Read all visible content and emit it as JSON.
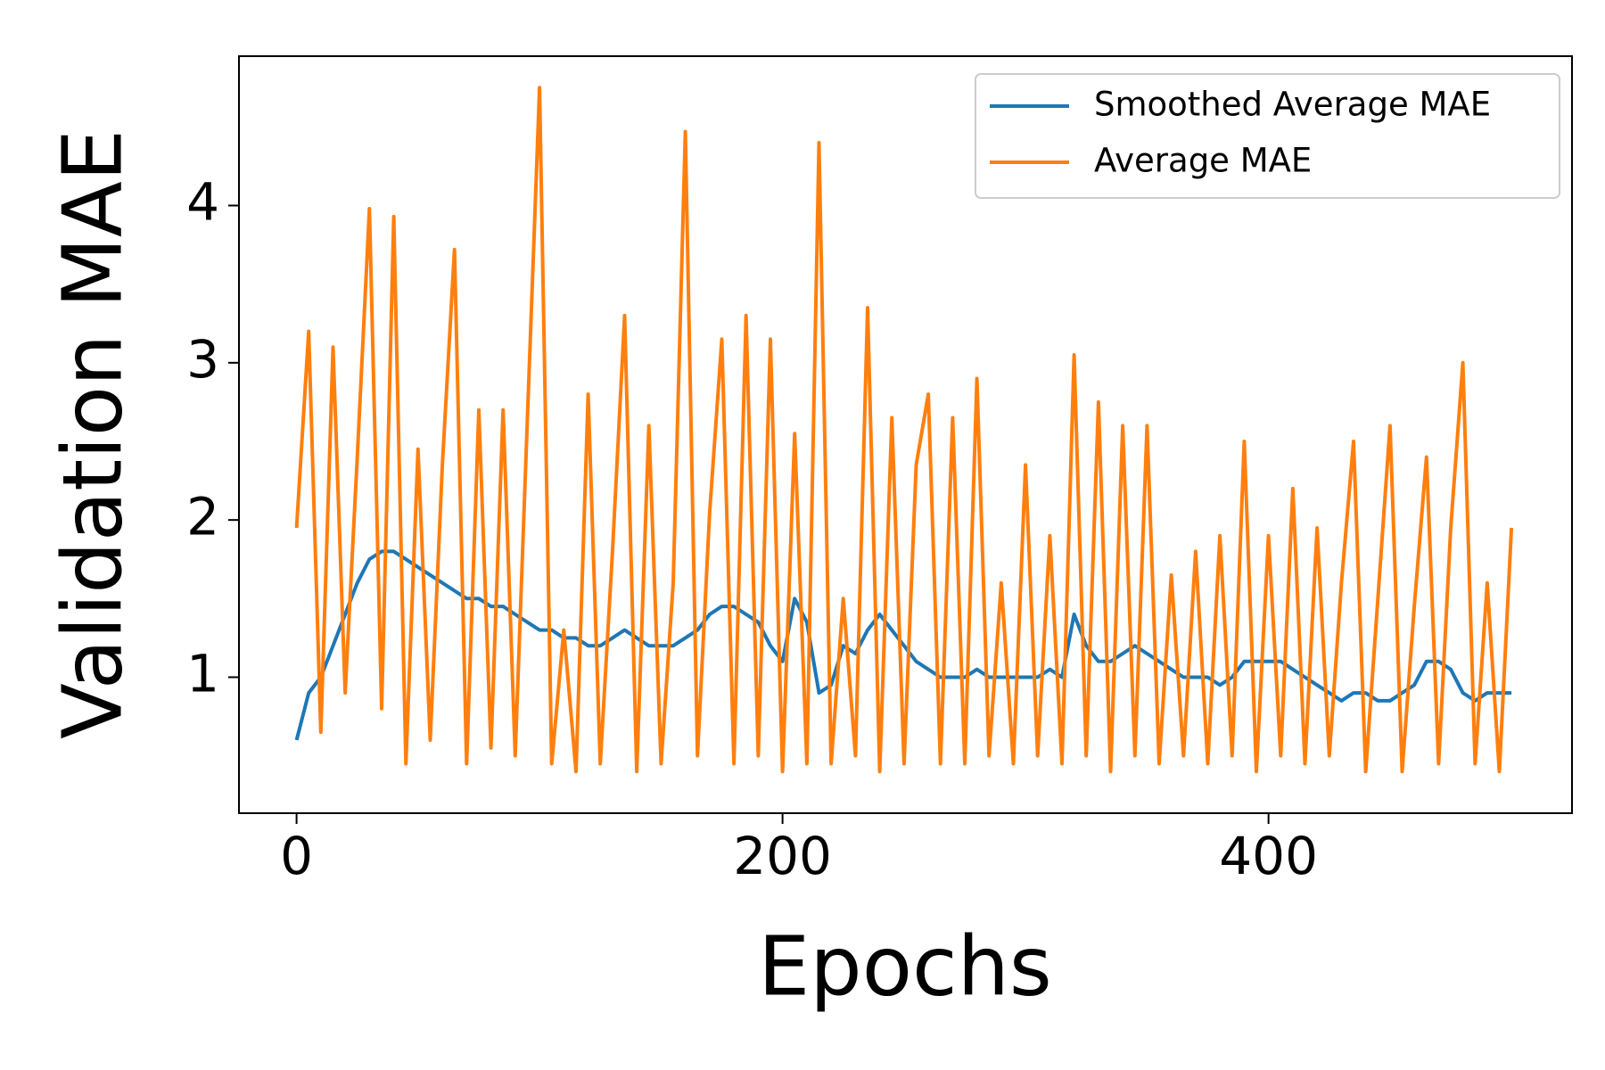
{
  "chart_data": {
    "type": "line",
    "xlabel": "Epochs",
    "ylabel": "Validation MAE",
    "x": [
      0,
      5,
      10,
      15,
      20,
      25,
      30,
      35,
      40,
      45,
      50,
      55,
      60,
      65,
      70,
      75,
      80,
      85,
      90,
      95,
      100,
      105,
      110,
      115,
      120,
      125,
      130,
      135,
      140,
      145,
      150,
      155,
      160,
      165,
      170,
      175,
      180,
      185,
      190,
      195,
      200,
      205,
      210,
      215,
      220,
      225,
      230,
      235,
      240,
      245,
      250,
      255,
      260,
      265,
      270,
      275,
      280,
      285,
      290,
      295,
      300,
      305,
      310,
      315,
      320,
      325,
      330,
      335,
      340,
      345,
      350,
      355,
      360,
      365,
      370,
      375,
      380,
      385,
      390,
      395,
      400,
      405,
      410,
      415,
      420,
      425,
      430,
      435,
      440,
      445,
      450,
      455,
      460,
      465,
      470,
      475,
      480,
      485,
      490,
      495,
      500
    ],
    "series": [
      {
        "name": "Smoothed Average MAE",
        "color": "#1f77b4",
        "values": [
          0.6,
          0.9,
          1.0,
          1.2,
          1.4,
          1.6,
          1.75,
          1.8,
          1.8,
          1.75,
          1.7,
          1.65,
          1.6,
          1.55,
          1.5,
          1.5,
          1.45,
          1.45,
          1.4,
          1.35,
          1.3,
          1.3,
          1.25,
          1.25,
          1.2,
          1.2,
          1.25,
          1.3,
          1.25,
          1.2,
          1.2,
          1.2,
          1.25,
          1.3,
          1.4,
          1.45,
          1.45,
          1.4,
          1.35,
          1.2,
          1.1,
          1.5,
          1.35,
          0.9,
          0.95,
          1.2,
          1.15,
          1.3,
          1.4,
          1.3,
          1.2,
          1.1,
          1.05,
          1.0,
          1.0,
          1.0,
          1.05,
          1.0,
          1.0,
          1.0,
          1.0,
          1.0,
          1.05,
          1.0,
          1.4,
          1.2,
          1.1,
          1.1,
          1.15,
          1.2,
          1.15,
          1.1,
          1.05,
          1.0,
          1.0,
          1.0,
          0.95,
          1.0,
          1.1,
          1.1,
          1.1,
          1.1,
          1.05,
          1.0,
          0.95,
          0.9,
          0.85,
          0.9,
          0.9,
          0.85,
          0.85,
          0.9,
          0.95,
          1.1,
          1.1,
          1.05,
          0.9,
          0.85,
          0.9,
          0.9,
          0.9
        ]
      },
      {
        "name": "Average MAE",
        "color": "#ff7f0e",
        "values": [
          1.95,
          3.2,
          0.65,
          3.1,
          0.9,
          2.4,
          3.98,
          0.8,
          3.93,
          0.45,
          2.45,
          0.6,
          2.35,
          3.72,
          0.45,
          2.7,
          0.55,
          2.7,
          0.5,
          2.65,
          4.75,
          0.45,
          1.3,
          0.4,
          2.8,
          0.45,
          1.8,
          3.3,
          0.4,
          2.6,
          0.45,
          1.6,
          4.47,
          0.5,
          2.05,
          3.15,
          0.45,
          3.3,
          0.5,
          3.15,
          0.4,
          2.55,
          0.45,
          4.4,
          0.45,
          1.5,
          0.5,
          3.35,
          0.4,
          2.65,
          0.45,
          2.35,
          2.8,
          0.45,
          2.65,
          0.45,
          2.9,
          0.5,
          1.6,
          0.45,
          2.35,
          0.5,
          1.9,
          0.45,
          3.05,
          0.5,
          2.75,
          0.4,
          2.6,
          0.5,
          2.6,
          0.45,
          1.65,
          0.5,
          1.8,
          0.45,
          1.9,
          0.5,
          2.5,
          0.4,
          1.9,
          0.5,
          2.2,
          0.45,
          1.95,
          0.5,
          1.6,
          2.5,
          0.4,
          1.5,
          2.6,
          0.4,
          1.45,
          2.4,
          0.45,
          1.95,
          3.0,
          0.45,
          1.6,
          0.4,
          1.95
        ]
      }
    ],
    "xlim": [
      -23.7,
      524.9
    ],
    "ylim": [
      0.135,
      4.95
    ],
    "xticks": [
      0,
      200,
      400
    ],
    "yticks": [
      1,
      2,
      3,
      4
    ],
    "legend": "upper right"
  }
}
